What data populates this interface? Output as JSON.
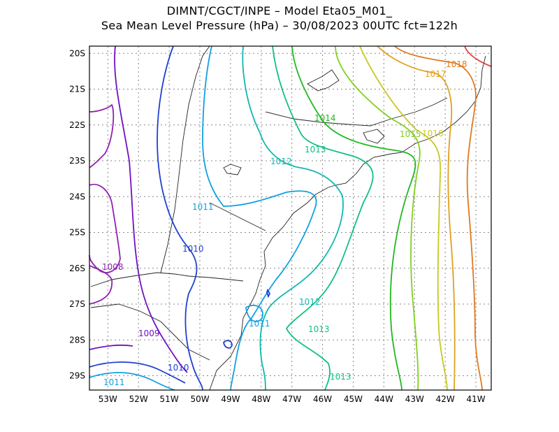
{
  "header": {
    "line1": "DIMNT/CGCT/INPE –  Model Eta05_M01_",
    "line2": "Sea Mean Level Pressure (hPa) – 30/08/2023 00UTC fct=122h"
  },
  "axes": {
    "lat_labels": [
      "20S",
      "21S",
      "22S",
      "23S",
      "24S",
      "25S",
      "26S",
      "27S",
      "28S",
      "29S"
    ],
    "lon_labels": [
      "53W",
      "52W",
      "51W",
      "50W",
      "49W",
      "48W",
      "47W",
      "46W",
      "45W",
      "44W",
      "43W",
      "42W",
      "41W"
    ],
    "grid": "dotted",
    "lon_range": [
      -53.6,
      -40.5
    ],
    "lat_range": [
      -29.4,
      -19.8
    ]
  },
  "contour_labels": [
    {
      "text": "1018",
      "color": "#e07a20"
    },
    {
      "text": "1017",
      "color": "#e0a020"
    },
    {
      "text": "1016",
      "color": "#c8c820"
    },
    {
      "text": "1015",
      "color": "#80d020"
    },
    {
      "text": "1014",
      "color": "#20b820"
    },
    {
      "text": "1013",
      "color": "#10c080"
    },
    {
      "text": "1012",
      "color": "#10b8b0"
    },
    {
      "text": "1011",
      "color": "#10a0e0"
    },
    {
      "text": "1010",
      "color": "#2040d0"
    },
    {
      "text": "1009",
      "color": "#7010c0"
    },
    {
      "text": "1008",
      "color": "#9020b0"
    },
    {
      "text": "1013",
      "color": "#10c080"
    },
    {
      "text": "1012",
      "color": "#10b8b0"
    },
    {
      "text": "1011",
      "color": "#10a0e0"
    },
    {
      "text": "1013",
      "color": "#10c080"
    },
    {
      "text": "1010",
      "color": "#2040d0"
    },
    {
      "text": "1011",
      "color": "#10a0e0"
    }
  ]
}
